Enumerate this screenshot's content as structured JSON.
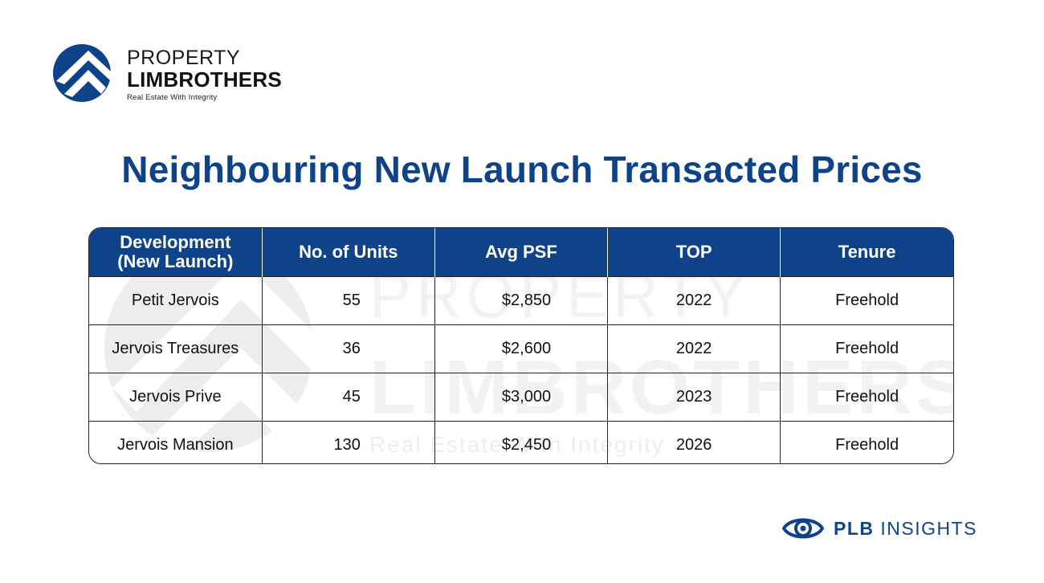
{
  "brand": {
    "line1": "PROPERTY",
    "line2": "LIMBROTHERS",
    "tagline": "Real Estate With Integrity",
    "color": "#0f4389"
  },
  "title": "Neighbouring New Launch Transacted Prices",
  "table": {
    "headers": {
      "development_line1": "Development",
      "development_line2": "(New Launch)",
      "units": "No. of Units",
      "psf": "Avg PSF",
      "top": "TOP",
      "tenure": "Tenure"
    },
    "rows": [
      {
        "development": "Petit Jervois",
        "units": "55",
        "psf": "$2,850",
        "top": "2022",
        "tenure": "Freehold"
      },
      {
        "development": "Jervois Treasures",
        "units": "36",
        "psf": "$2,600",
        "top": "2022",
        "tenure": "Freehold"
      },
      {
        "development": "Jervois Prive",
        "units": "45",
        "psf": "$3,000",
        "top": "2023",
        "tenure": "Freehold"
      },
      {
        "development": "Jervois Mansion",
        "units": "130",
        "psf": "$2,450",
        "top": "2026",
        "tenure": "Freehold"
      }
    ]
  },
  "watermark": {
    "line1": "PROPERTY",
    "line2": "LIMBROTHERS",
    "tagline": "Real Estate With Integrity"
  },
  "footer": {
    "bold": "PLB",
    "text": "INSIGHTS",
    "icon": "eye-icon"
  }
}
